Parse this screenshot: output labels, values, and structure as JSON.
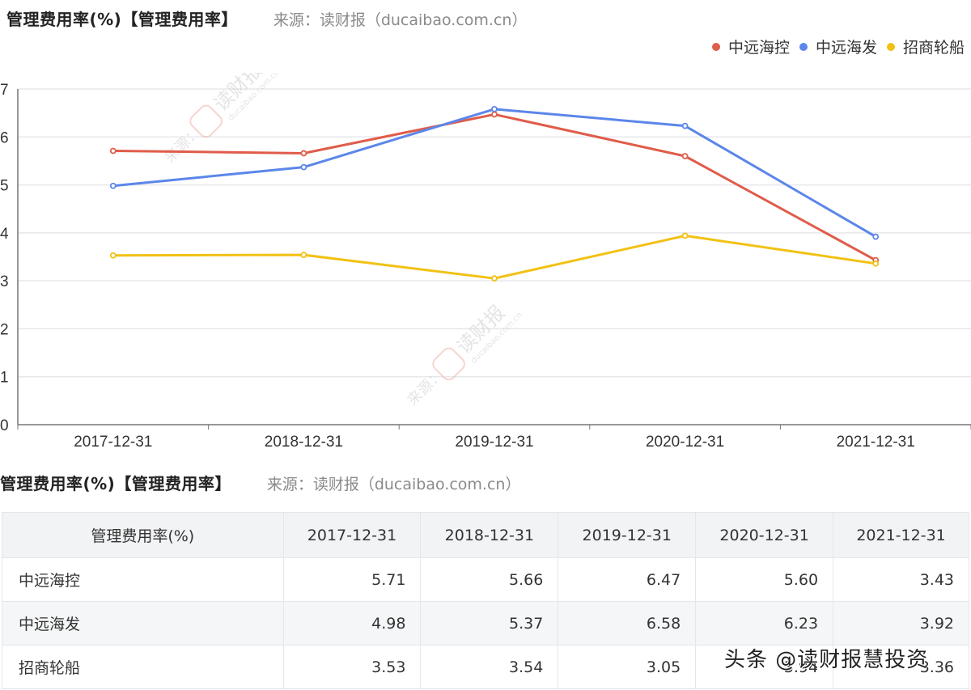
{
  "chart_title": "管理费用率(%)【管理费用率】",
  "source": "来源：读财报（ducaibao.com.cn）",
  "legend": [
    {
      "name": "中远海控",
      "color": "#e05c4a"
    },
    {
      "name": "中远海发",
      "color": "#5b86ea"
    },
    {
      "name": "招商轮船",
      "color": "#f2c114"
    }
  ],
  "chart_data": {
    "type": "line",
    "title": "管理费用率(%)【管理费用率】",
    "subtitle": "来源：读财报（ducaibao.com.cn）",
    "xlabel": "",
    "ylabel": "",
    "categories": [
      "2017-12-31",
      "2018-12-31",
      "2019-12-31",
      "2020-12-31",
      "2021-12-31"
    ],
    "ylim": [
      0,
      7
    ],
    "yticks": [
      0,
      1,
      2,
      3,
      4,
      5,
      6,
      7
    ],
    "grid": true,
    "legend_position": "top-right",
    "series": [
      {
        "name": "中远海控",
        "color": "#e05c4a",
        "values": [
          5.71,
          5.66,
          6.47,
          5.6,
          3.43
        ]
      },
      {
        "name": "中远海发",
        "color": "#5b86ea",
        "values": [
          4.98,
          5.37,
          6.58,
          6.23,
          3.92
        ]
      },
      {
        "name": "招商轮船",
        "color": "#f2c114",
        "values": [
          3.53,
          3.54,
          3.05,
          3.94,
          3.36
        ]
      }
    ]
  },
  "table": {
    "title": "管理费用率(%)【管理费用率】",
    "source": "来源：读财报（ducaibao.com.cn）",
    "header": [
      "管理费用率(%)",
      "2017-12-31",
      "2018-12-31",
      "2019-12-31",
      "2020-12-31",
      "2021-12-31"
    ],
    "rows": [
      {
        "name": "中远海控",
        "values": [
          "5.71",
          "5.66",
          "6.47",
          "5.60",
          "3.43"
        ]
      },
      {
        "name": "中远海发",
        "values": [
          "4.98",
          "5.37",
          "6.58",
          "6.23",
          "3.92"
        ]
      },
      {
        "name": "招商轮船",
        "values": [
          "3.53",
          "3.54",
          "3.05",
          "3.94",
          "3.36"
        ]
      }
    ]
  },
  "watermark": {
    "brand": "读财报",
    "domain": "ducaibao.com.cn",
    "prefix": "来源：",
    "toutiao": "头条 @读财报慧投资"
  }
}
